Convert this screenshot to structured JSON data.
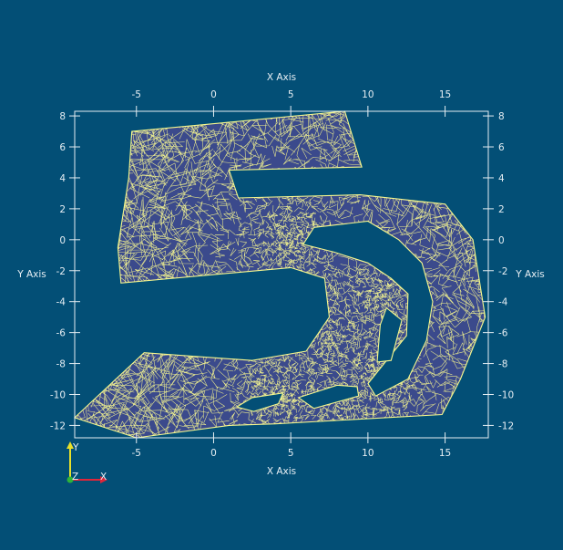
{
  "window": {
    "background": "#034f76"
  },
  "axes": {
    "x_title": "X Axis",
    "y_title": "Y Axis",
    "x_range": [
      -9,
      17.8
    ],
    "y_range": [
      -12.8,
      8.3
    ],
    "x_ticks": [
      -5,
      0,
      5,
      10,
      15
    ],
    "y_ticks": [
      8,
      6,
      4,
      2,
      0,
      -2,
      -4,
      -6,
      -8,
      -10,
      -12
    ],
    "color": "#e6eef3"
  },
  "mesh": {
    "fill_color": "#3b4a8c",
    "edge_color": "#f7f78e",
    "outer_boundary": [
      [
        -5.3,
        7
      ],
      [
        8.5,
        8.3
      ],
      [
        9.6,
        4.7
      ],
      [
        1,
        4.5
      ],
      [
        1.6,
        2.7
      ],
      [
        9.5,
        2.9
      ],
      [
        15,
        2.3
      ],
      [
        16.8,
        0
      ],
      [
        17.6,
        -5
      ],
      [
        16,
        -9
      ],
      [
        14.8,
        -11.3
      ],
      [
        4,
        -11.9
      ],
      [
        1,
        -12
      ],
      [
        -5,
        -12.8
      ],
      [
        -9,
        -11.5
      ],
      [
        -4.5,
        -7.3
      ],
      [
        2.5,
        -7.8
      ],
      [
        6,
        -7.2
      ],
      [
        7.5,
        -5
      ],
      [
        7.2,
        -2.5
      ],
      [
        5,
        -1.8
      ],
      [
        -6,
        -2.8
      ],
      [
        -6.2,
        -0.5
      ],
      [
        -5.5,
        4
      ]
    ],
    "holes": [
      [
        [
          5.8,
          -0.3
        ],
        [
          6.5,
          0.8
        ],
        [
          10,
          1.2
        ],
        [
          12,
          0
        ],
        [
          13.5,
          -1.5
        ],
        [
          14.2,
          -4
        ],
        [
          13.8,
          -6.5
        ],
        [
          12.6,
          -9
        ],
        [
          10.5,
          -10.1
        ],
        [
          10,
          -9.3
        ],
        [
          12.5,
          -6.2
        ],
        [
          12.6,
          -3.5
        ],
        [
          11.5,
          -2.5
        ],
        [
          10,
          -1.5
        ],
        [
          7.8,
          -0.8
        ]
      ],
      [
        [
          11.2,
          -4.4
        ],
        [
          12.2,
          -5.2
        ],
        [
          11.5,
          -7.8
        ],
        [
          10.6,
          -7.9
        ],
        [
          10.8,
          -5.5
        ]
      ],
      [
        [
          1.5,
          -10.8
        ],
        [
          2.5,
          -10.2
        ],
        [
          4.5,
          -9.9
        ],
        [
          4.2,
          -10.6
        ],
        [
          2.6,
          -11.1
        ]
      ],
      [
        [
          5.5,
          -10.2
        ],
        [
          8,
          -9.4
        ],
        [
          9.3,
          -9.5
        ],
        [
          9.4,
          -10.1
        ],
        [
          6.5,
          -10.9
        ]
      ]
    ],
    "seed": 7
  },
  "orientation_axes": {
    "x_label": "X",
    "y_label": "Y",
    "z_label": "Z",
    "x_color": "#e0263a",
    "y_color": "#e8e02a",
    "z_color": "#2eb33a"
  }
}
